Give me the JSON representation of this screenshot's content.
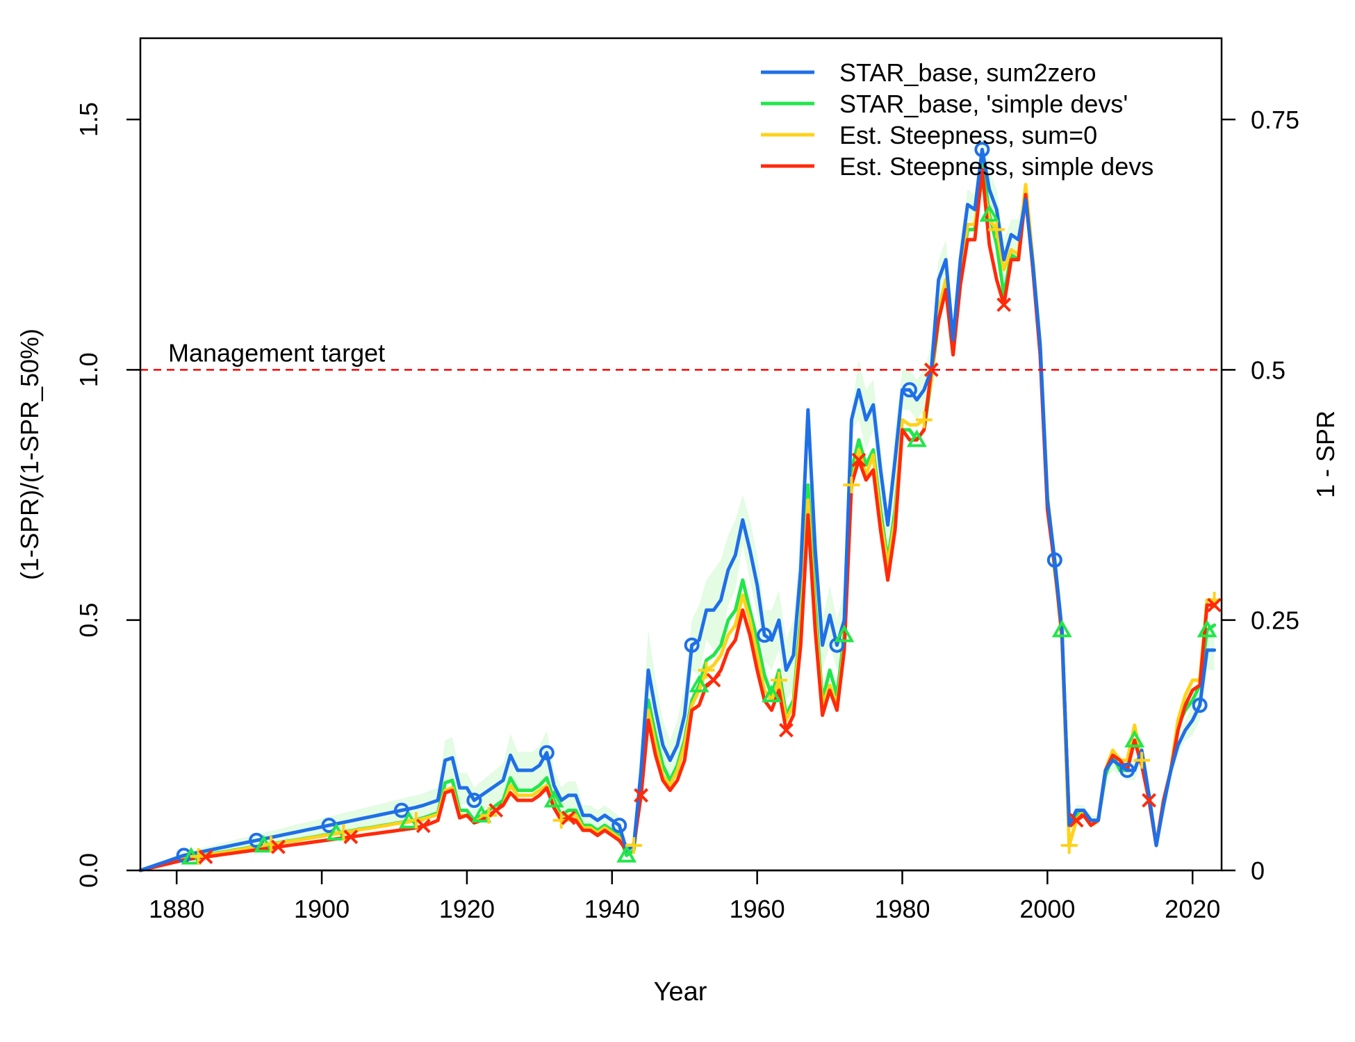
{
  "chart_data": {
    "type": "line",
    "xlabel": "Year",
    "ylabel": "(1-SPR)/(1-SPR_50%)",
    "y2label": "1 - SPR",
    "xlim": [
      1875,
      2024
    ],
    "ylim": [
      0,
      1.5
    ],
    "y2lim": [
      0,
      0.75
    ],
    "xticks": [
      "1880",
      "1900",
      "1920",
      "1940",
      "1960",
      "1980",
      "2000",
      "2020"
    ],
    "yticks": [
      "0.0",
      "0.5",
      "1.0",
      "1.5"
    ],
    "y2ticks": [
      "0",
      "0.25",
      "0.5",
      "0.75"
    ],
    "target": {
      "value": 1.0,
      "label": "Management target",
      "color": "#FF0000"
    },
    "legend_position": "top-right",
    "band_color": "#E4FBE4",
    "years": [
      1875,
      1876,
      1877,
      1878,
      1879,
      1880,
      1881,
      1882,
      1883,
      1884,
      1885,
      1886,
      1887,
      1888,
      1889,
      1890,
      1891,
      1892,
      1893,
      1894,
      1895,
      1896,
      1897,
      1898,
      1899,
      1900,
      1901,
      1902,
      1903,
      1904,
      1905,
      1906,
      1907,
      1908,
      1909,
      1910,
      1911,
      1912,
      1913,
      1914,
      1915,
      1916,
      1917,
      1918,
      1919,
      1920,
      1921,
      1922,
      1923,
      1924,
      1925,
      1926,
      1927,
      1928,
      1929,
      1930,
      1931,
      1932,
      1933,
      1934,
      1935,
      1936,
      1937,
      1938,
      1939,
      1940,
      1941,
      1942,
      1943,
      1944,
      1945,
      1946,
      1947,
      1948,
      1949,
      1950,
      1951,
      1952,
      1953,
      1954,
      1955,
      1956,
      1957,
      1958,
      1959,
      1960,
      1961,
      1962,
      1963,
      1964,
      1965,
      1966,
      1967,
      1968,
      1969,
      1970,
      1971,
      1972,
      1973,
      1974,
      1975,
      1976,
      1977,
      1978,
      1979,
      1980,
      1981,
      1982,
      1983,
      1984,
      1985,
      1986,
      1987,
      1988,
      1989,
      1990,
      1991,
      1992,
      1993,
      1994,
      1995,
      1996,
      1997,
      1998,
      1999,
      2000,
      2001,
      2002,
      2003,
      2004,
      2005,
      2006,
      2007,
      2008,
      2009,
      2010,
      2011,
      2012,
      2013,
      2014,
      2015,
      2016,
      2017,
      2018,
      2019,
      2020,
      2021,
      2022,
      2023
    ],
    "series": [
      {
        "name": "STAR_base, sum2zero",
        "color": "#1F6FE8",
        "marker": "circle",
        "values": [
          0,
          0.005,
          0.01,
          0.015,
          0.02,
          0.025,
          0.03,
          0.033,
          0.036,
          0.039,
          0.042,
          0.045,
          0.048,
          0.051,
          0.054,
          0.057,
          0.06,
          0.063,
          0.066,
          0.069,
          0.072,
          0.075,
          0.078,
          0.081,
          0.084,
          0.087,
          0.09,
          0.093,
          0.096,
          0.099,
          0.102,
          0.105,
          0.108,
          0.111,
          0.114,
          0.117,
          0.12,
          0.123,
          0.126,
          0.13,
          0.135,
          0.14,
          0.22,
          0.225,
          0.165,
          0.165,
          0.14,
          0.15,
          0.16,
          0.17,
          0.18,
          0.23,
          0.2,
          0.2,
          0.2,
          0.21,
          0.235,
          0.17,
          0.14,
          0.15,
          0.15,
          0.11,
          0.11,
          0.1,
          0.11,
          0.1,
          0.09,
          0.04,
          0.05,
          0.2,
          0.4,
          0.32,
          0.25,
          0.22,
          0.25,
          0.31,
          0.45,
          0.46,
          0.52,
          0.52,
          0.54,
          0.6,
          0.63,
          0.7,
          0.64,
          0.57,
          0.47,
          0.46,
          0.5,
          0.4,
          0.43,
          0.6,
          0.92,
          0.64,
          0.45,
          0.51,
          0.45,
          0.5,
          0.9,
          0.96,
          0.9,
          0.93,
          0.8,
          0.69,
          0.82,
          0.96,
          0.96,
          0.94,
          0.96,
          1.0,
          1.18,
          1.22,
          1.06,
          1.22,
          1.33,
          1.32,
          1.44,
          1.36,
          1.32,
          1.22,
          1.27,
          1.26,
          1.34,
          1.21,
          1.05,
          0.74,
          0.62,
          0.48,
          0.09,
          0.12,
          0.12,
          0.1,
          0.1,
          0.2,
          0.22,
          0.21,
          0.2,
          0.2,
          0.24,
          0.15,
          0.05,
          0.13,
          0.2,
          0.25,
          0.28,
          0.3,
          0.33,
          0.44,
          0.44
        ],
        "ci_upper": [
          0,
          0.006,
          0.012,
          0.018,
          0.024,
          0.03,
          0.036,
          0.04,
          0.043,
          0.047,
          0.05,
          0.054,
          0.057,
          0.061,
          0.065,
          0.068,
          0.072,
          0.075,
          0.079,
          0.082,
          0.086,
          0.09,
          0.093,
          0.097,
          0.1,
          0.104,
          0.107,
          0.111,
          0.115,
          0.118,
          0.122,
          0.125,
          0.129,
          0.132,
          0.136,
          0.14,
          0.143,
          0.147,
          0.15,
          0.154,
          0.16,
          0.166,
          0.26,
          0.266,
          0.195,
          0.195,
          0.166,
          0.178,
          0.19,
          0.202,
          0.213,
          0.273,
          0.237,
          0.237,
          0.237,
          0.249,
          0.279,
          0.202,
          0.166,
          0.178,
          0.178,
          0.13,
          0.13,
          0.12,
          0.13,
          0.12,
          0.107,
          0.047,
          0.06,
          0.26,
          0.48,
          0.38,
          0.3,
          0.26,
          0.3,
          0.37,
          0.5,
          0.53,
          0.58,
          0.6,
          0.62,
          0.67,
          0.7,
          0.75,
          0.7,
          0.63,
          0.52,
          0.52,
          0.56,
          0.46,
          0.5,
          0.68,
          0.93,
          0.7,
          0.5,
          0.57,
          0.5,
          0.56,
          0.92,
          1.02,
          0.96,
          0.98,
          0.85,
          0.72,
          0.88,
          1.0,
          1.0,
          0.98,
          1.0,
          1.05,
          1.22,
          1.26,
          1.1,
          1.26,
          1.36,
          1.35,
          1.48,
          1.4,
          1.36,
          1.26,
          1.3,
          1.3,
          1.37,
          1.25,
          1.08,
          0.77,
          0.66,
          0.52,
          0.1,
          0.13,
          0.13,
          0.11,
          0.11,
          0.22,
          0.24,
          0.23,
          0.22,
          0.22,
          0.26,
          0.17,
          0.06,
          0.15,
          0.22,
          0.27,
          0.3,
          0.33,
          0.36,
          0.48,
          0.48
        ],
        "ci_lower": [
          0,
          0.004,
          0.008,
          0.012,
          0.016,
          0.02,
          0.024,
          0.026,
          0.029,
          0.031,
          0.034,
          0.036,
          0.039,
          0.041,
          0.043,
          0.046,
          0.048,
          0.05,
          0.053,
          0.055,
          0.058,
          0.06,
          0.062,
          0.065,
          0.067,
          0.07,
          0.072,
          0.074,
          0.077,
          0.079,
          0.082,
          0.084,
          0.086,
          0.089,
          0.091,
          0.094,
          0.096,
          0.098,
          0.101,
          0.104,
          0.108,
          0.112,
          0.176,
          0.18,
          0.132,
          0.132,
          0.112,
          0.12,
          0.128,
          0.136,
          0.144,
          0.184,
          0.16,
          0.16,
          0.16,
          0.168,
          0.188,
          0.136,
          0.112,
          0.12,
          0.12,
          0.088,
          0.088,
          0.08,
          0.088,
          0.08,
          0.072,
          0.032,
          0.04,
          0.14,
          0.32,
          0.26,
          0.2,
          0.18,
          0.2,
          0.25,
          0.4,
          0.39,
          0.46,
          0.44,
          0.46,
          0.53,
          0.56,
          0.65,
          0.58,
          0.51,
          0.42,
          0.4,
          0.44,
          0.34,
          0.36,
          0.52,
          0.91,
          0.58,
          0.4,
          0.45,
          0.4,
          0.44,
          0.88,
          0.9,
          0.84,
          0.88,
          0.75,
          0.66,
          0.76,
          0.92,
          0.92,
          0.9,
          0.92,
          0.95,
          1.14,
          1.18,
          1.02,
          1.18,
          1.3,
          1.29,
          1.4,
          1.32,
          1.28,
          1.18,
          1.24,
          1.22,
          1.31,
          1.17,
          1.02,
          0.71,
          0.58,
          0.44,
          0.08,
          0.11,
          0.11,
          0.09,
          0.09,
          0.18,
          0.2,
          0.19,
          0.18,
          0.18,
          0.22,
          0.13,
          0.04,
          0.11,
          0.18,
          0.23,
          0.26,
          0.27,
          0.3,
          0.4,
          0.4
        ]
      },
      {
        "name": "STAR_base, 'simple devs'",
        "color": "#22E64A",
        "marker": "triangle",
        "values": [
          0,
          0.004,
          0.008,
          0.012,
          0.016,
          0.02,
          0.024,
          0.026,
          0.029,
          0.031,
          0.034,
          0.036,
          0.038,
          0.041,
          0.043,
          0.046,
          0.048,
          0.05,
          0.053,
          0.055,
          0.058,
          0.06,
          0.062,
          0.065,
          0.067,
          0.07,
          0.072,
          0.074,
          0.077,
          0.079,
          0.082,
          0.084,
          0.086,
          0.089,
          0.091,
          0.094,
          0.096,
          0.098,
          0.101,
          0.105,
          0.11,
          0.115,
          0.175,
          0.18,
          0.12,
          0.12,
          0.1,
          0.11,
          0.12,
          0.13,
          0.14,
          0.185,
          0.16,
          0.16,
          0.16,
          0.17,
          0.185,
          0.14,
          0.11,
          0.12,
          0.12,
          0.09,
          0.09,
          0.08,
          0.09,
          0.08,
          0.07,
          0.03,
          0.04,
          0.17,
          0.34,
          0.27,
          0.21,
          0.18,
          0.21,
          0.26,
          0.34,
          0.37,
          0.42,
          0.43,
          0.45,
          0.5,
          0.52,
          0.58,
          0.52,
          0.46,
          0.39,
          0.35,
          0.4,
          0.31,
          0.34,
          0.5,
          0.77,
          0.53,
          0.34,
          0.4,
          0.35,
          0.47,
          0.8,
          0.86,
          0.81,
          0.84,
          0.72,
          0.62,
          0.72,
          0.88,
          0.88,
          0.86,
          0.88,
          0.98,
          1.1,
          1.16,
          1.03,
          1.18,
          1.28,
          1.28,
          1.42,
          1.31,
          1.25,
          1.15,
          1.23,
          1.22,
          1.35,
          1.2,
          1.04,
          0.74,
          0.6,
          0.48,
          0.09,
          0.11,
          0.12,
          0.09,
          0.1,
          0.19,
          0.23,
          0.2,
          0.2,
          0.26,
          0.22,
          0.15,
          0.05,
          0.14,
          0.2,
          0.29,
          0.32,
          0.34,
          0.37,
          0.48,
          0.49
        ]
      },
      {
        "name": "Est. Steepness, sum=0",
        "color": "#FFD21A",
        "marker": "plus",
        "values": [
          0,
          0.004,
          0.008,
          0.012,
          0.016,
          0.02,
          0.023,
          0.025,
          0.028,
          0.03,
          0.033,
          0.035,
          0.037,
          0.04,
          0.042,
          0.045,
          0.047,
          0.049,
          0.052,
          0.054,
          0.057,
          0.059,
          0.061,
          0.064,
          0.066,
          0.069,
          0.071,
          0.073,
          0.076,
          0.078,
          0.081,
          0.083,
          0.085,
          0.088,
          0.09,
          0.093,
          0.095,
          0.097,
          0.1,
          0.103,
          0.107,
          0.112,
          0.16,
          0.165,
          0.11,
          0.11,
          0.095,
          0.105,
          0.11,
          0.12,
          0.13,
          0.17,
          0.15,
          0.15,
          0.15,
          0.16,
          0.17,
          0.13,
          0.1,
          0.11,
          0.11,
          0.085,
          0.085,
          0.075,
          0.085,
          0.075,
          0.065,
          0.05,
          0.05,
          0.16,
          0.32,
          0.25,
          0.19,
          0.17,
          0.2,
          0.25,
          0.33,
          0.36,
          0.4,
          0.41,
          0.43,
          0.47,
          0.49,
          0.55,
          0.5,
          0.43,
          0.36,
          0.34,
          0.38,
          0.3,
          0.33,
          0.48,
          0.74,
          0.5,
          0.33,
          0.37,
          0.33,
          0.45,
          0.77,
          0.84,
          0.79,
          0.83,
          0.7,
          0.61,
          0.7,
          0.9,
          0.89,
          0.89,
          0.9,
          0.98,
          1.12,
          1.18,
          1.04,
          1.2,
          1.29,
          1.29,
          1.38,
          1.3,
          1.28,
          1.2,
          1.24,
          1.23,
          1.37,
          1.22,
          1.05,
          0.75,
          0.61,
          0.46,
          0.05,
          0.1,
          0.12,
          0.09,
          0.1,
          0.2,
          0.24,
          0.22,
          0.22,
          0.29,
          0.22,
          0.14,
          0.05,
          0.14,
          0.2,
          0.3,
          0.35,
          0.38,
          0.38,
          0.54,
          0.54
        ]
      },
      {
        "name": "Est. Steepness, simple devs",
        "color": "#FF2A0A",
        "marker": "x",
        "values": [
          0,
          0.0035,
          0.007,
          0.0105,
          0.014,
          0.0175,
          0.021,
          0.023,
          0.025,
          0.027,
          0.029,
          0.031,
          0.033,
          0.035,
          0.037,
          0.039,
          0.041,
          0.043,
          0.045,
          0.047,
          0.049,
          0.051,
          0.053,
          0.055,
          0.057,
          0.059,
          0.061,
          0.063,
          0.065,
          0.067,
          0.069,
          0.071,
          0.073,
          0.075,
          0.077,
          0.079,
          0.081,
          0.083,
          0.085,
          0.089,
          0.094,
          0.1,
          0.155,
          0.16,
          0.105,
          0.11,
          0.095,
          0.1,
          0.11,
          0.12,
          0.13,
          0.155,
          0.14,
          0.14,
          0.14,
          0.15,
          0.165,
          0.125,
          0.1,
          0.105,
          0.1,
          0.08,
          0.08,
          0.07,
          0.08,
          0.07,
          0.06,
          0.04,
          0.05,
          0.15,
          0.3,
          0.23,
          0.18,
          0.16,
          0.18,
          0.22,
          0.32,
          0.33,
          0.37,
          0.38,
          0.4,
          0.44,
          0.46,
          0.52,
          0.47,
          0.4,
          0.34,
          0.32,
          0.36,
          0.28,
          0.31,
          0.45,
          0.71,
          0.48,
          0.31,
          0.36,
          0.32,
          0.44,
          0.77,
          0.82,
          0.78,
          0.8,
          0.68,
          0.58,
          0.68,
          0.88,
          0.86,
          0.86,
          0.88,
          1.0,
          1.1,
          1.16,
          1.03,
          1.17,
          1.26,
          1.26,
          1.4,
          1.25,
          1.18,
          1.13,
          1.22,
          1.22,
          1.35,
          1.2,
          1.03,
          0.72,
          0.61,
          0.47,
          0.1,
          0.1,
          0.11,
          0.09,
          0.1,
          0.2,
          0.23,
          0.22,
          0.2,
          0.26,
          0.21,
          0.14,
          0.05,
          0.14,
          0.2,
          0.28,
          0.33,
          0.36,
          0.37,
          0.53,
          0.53
        ]
      }
    ]
  }
}
